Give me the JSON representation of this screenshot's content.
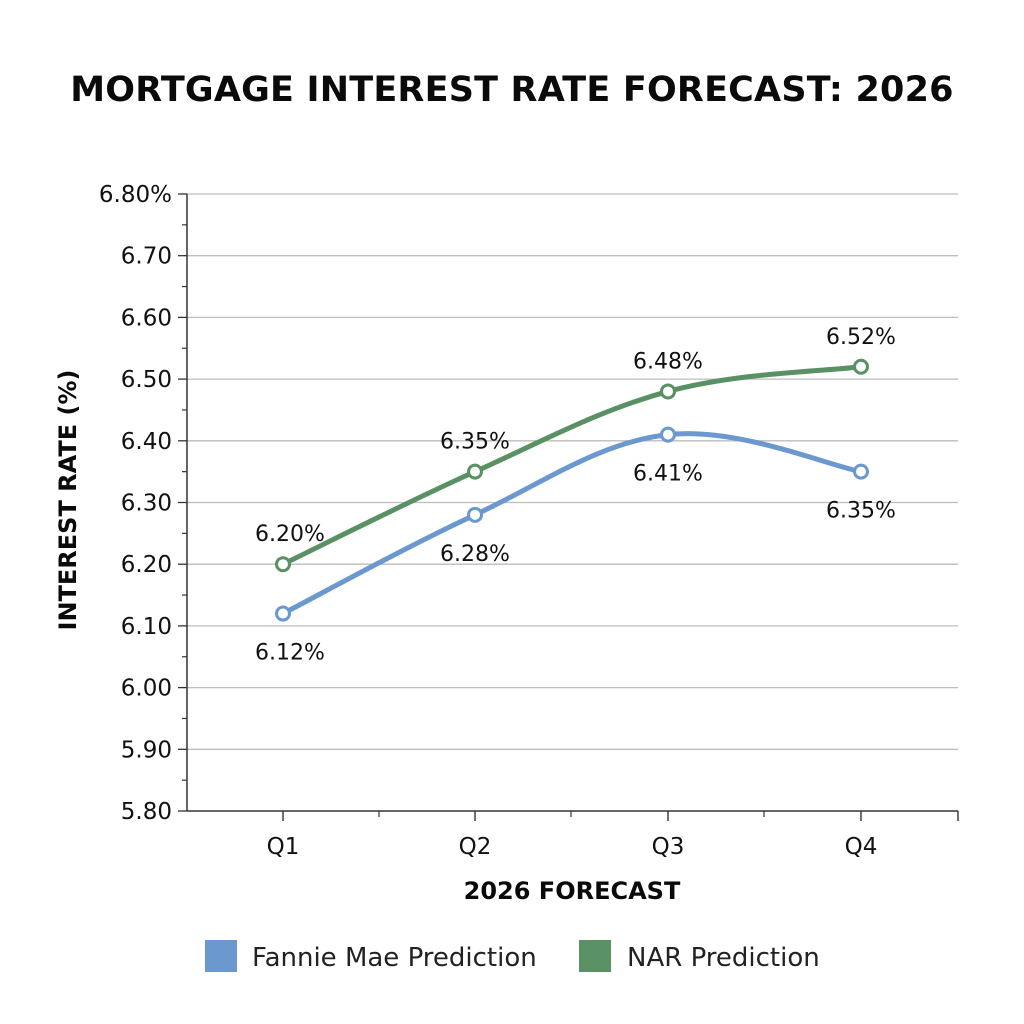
{
  "chart_data": {
    "type": "line",
    "title": "MORTGAGE INTEREST RATE FORECAST: 2026",
    "xlabel": "2026 FORECAST",
    "ylabel": "INTEREST RATE (%)",
    "categories": [
      "Q1",
      "Q2",
      "Q3",
      "Q4"
    ],
    "ylim": [
      5.8,
      6.8
    ],
    "yticks": [
      {
        "value": 6.8,
        "label": "6.80%"
      },
      {
        "value": 6.7,
        "label": "6.70"
      },
      {
        "value": 6.6,
        "label": "6.60"
      },
      {
        "value": 6.5,
        "label": "6.50"
      },
      {
        "value": 6.4,
        "label": "6.40"
      },
      {
        "value": 6.3,
        "label": "6.30"
      },
      {
        "value": 6.2,
        "label": "6.20"
      },
      {
        "value": 6.1,
        "label": "6.10"
      },
      {
        "value": 6.0,
        "label": "6.00"
      },
      {
        "value": 5.9,
        "label": "5.90"
      },
      {
        "value": 5.8,
        "label": "5.80"
      }
    ],
    "grid": true,
    "legend_position": "bottom",
    "series": [
      {
        "name": "Fannie Mae Prediction",
        "color": "#6a98cf",
        "values": [
          6.12,
          6.28,
          6.41,
          6.35
        ],
        "labels": [
          "6.12%",
          "6.28%",
          "6.41%",
          "6.35%"
        ],
        "label_side": "below"
      },
      {
        "name": "NAR Prediction",
        "color": "#5a9164",
        "values": [
          6.2,
          6.35,
          6.48,
          6.52
        ],
        "labels": [
          "6.20%",
          "6.35%",
          "6.48%",
          "6.52%"
        ],
        "label_side": "above"
      }
    ]
  }
}
